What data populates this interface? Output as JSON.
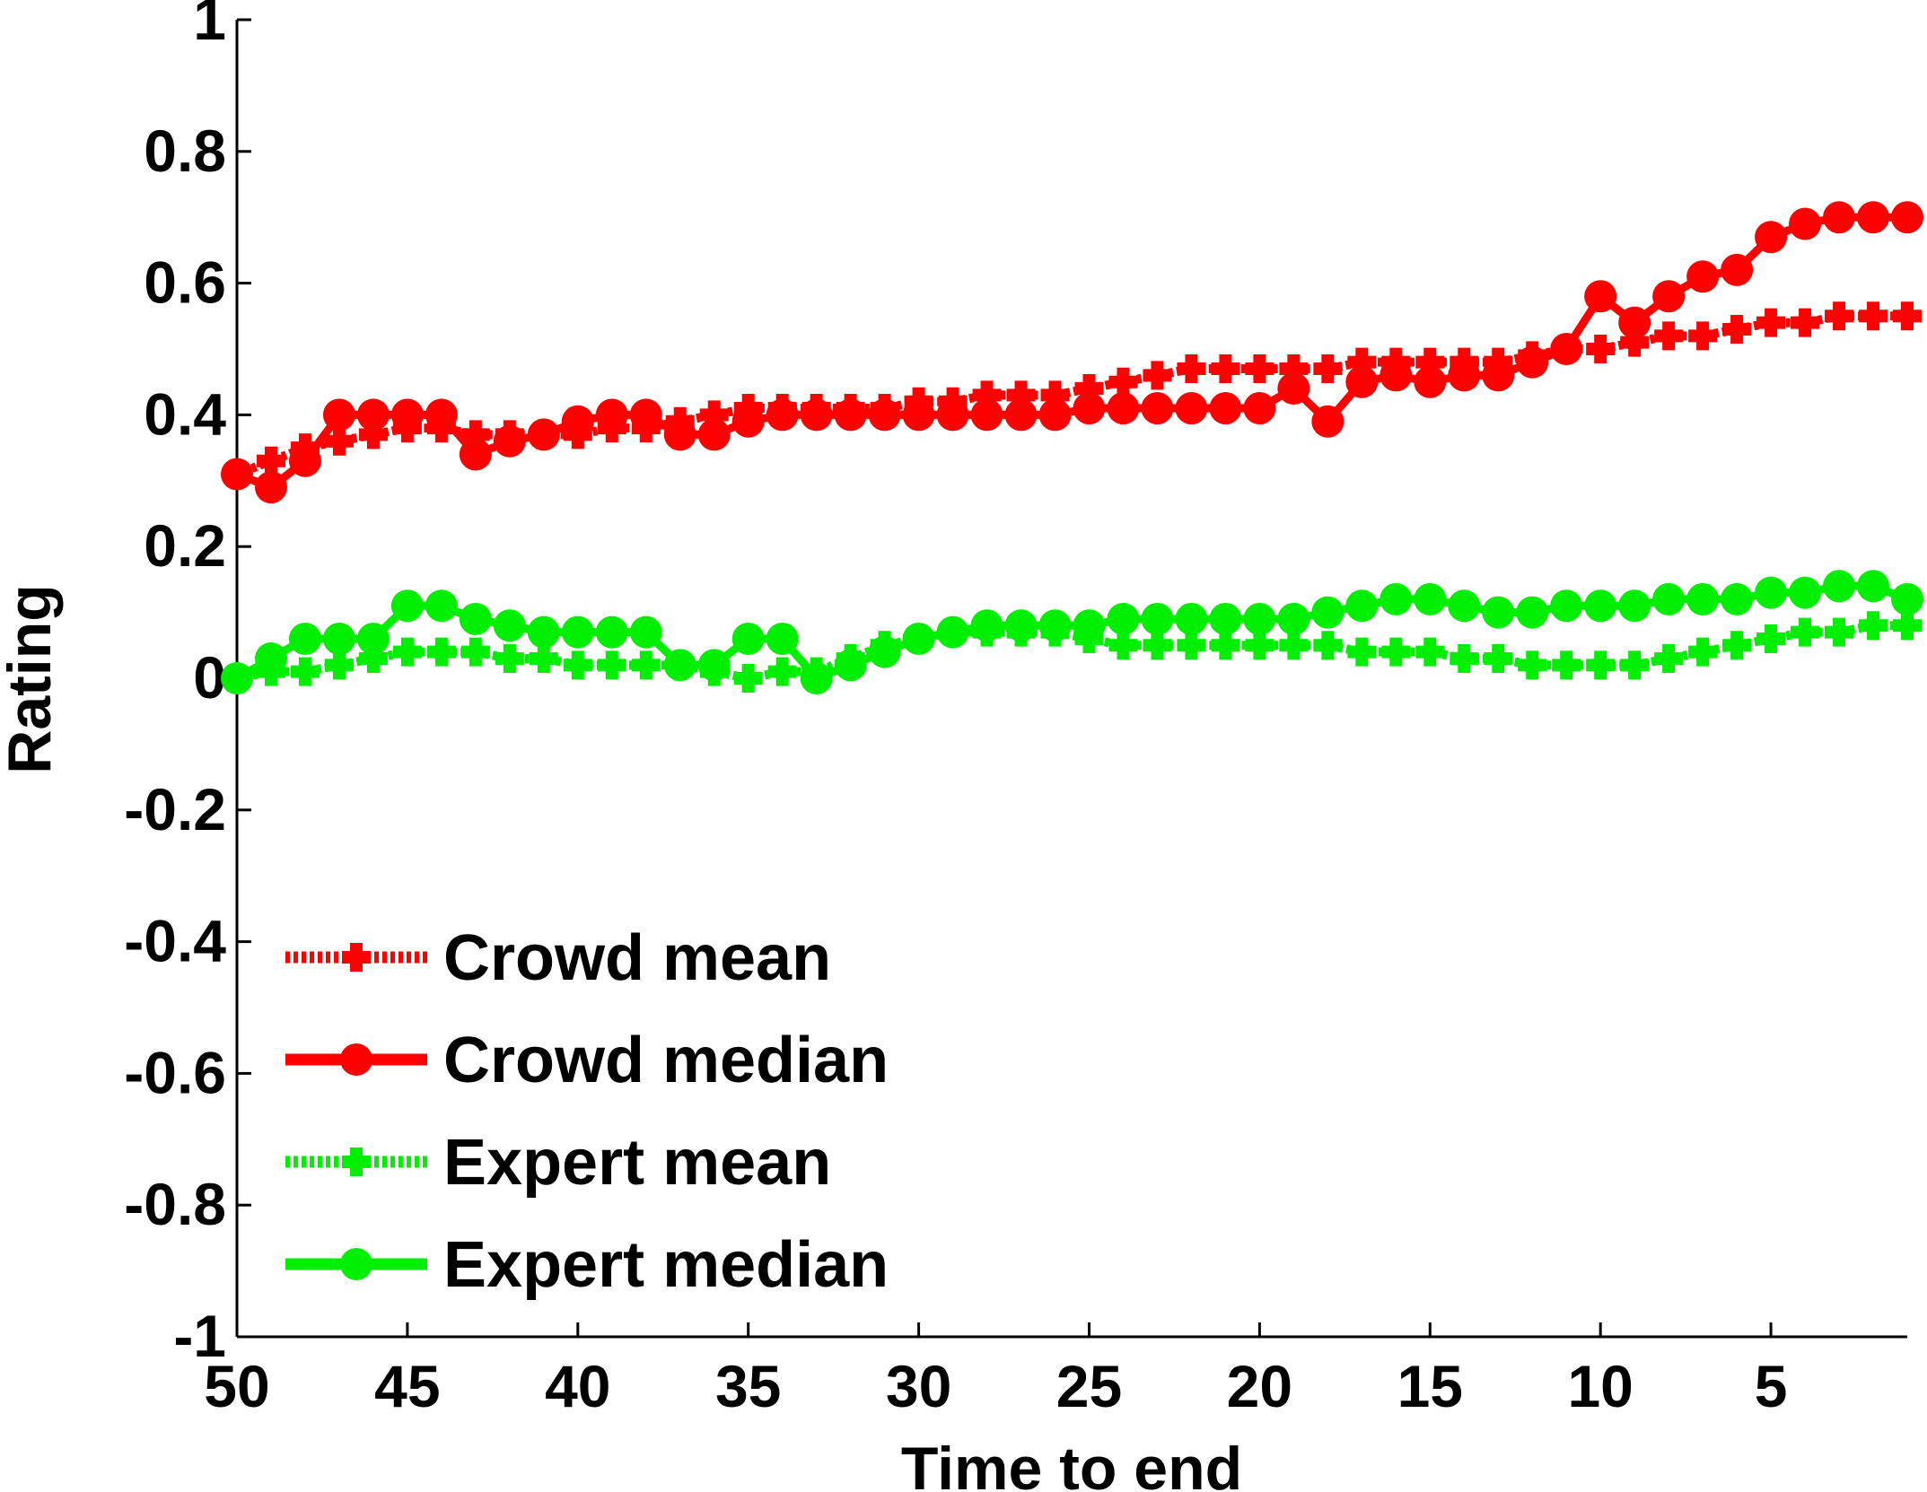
{
  "chart_data": {
    "type": "line",
    "title": "",
    "xlabel": "Time to end",
    "ylabel": "Rating",
    "xlim": [
      50,
      1
    ],
    "ylim": [
      -1,
      1
    ],
    "xticks": [
      50,
      45,
      40,
      35,
      30,
      25,
      20,
      15,
      10,
      5
    ],
    "xtick_labels": [
      "50",
      "45",
      "40",
      "35",
      "30",
      "25",
      "20",
      "15",
      "10",
      "5"
    ],
    "yticks": [
      1,
      0.8,
      0.6,
      0.4,
      0.2,
      0,
      -0.2,
      -0.4,
      -0.6,
      -0.8,
      -1
    ],
    "ytick_labels": [
      "1",
      "0.8",
      "0.6",
      "0.4",
      "0.2",
      "0",
      "-0.2",
      "-0.4",
      "-0.6",
      "-0.8",
      "-1"
    ],
    "legend_position": "bottom-left",
    "x": [
      50,
      49,
      48,
      47,
      46,
      45,
      44,
      43,
      42,
      41,
      40,
      39,
      38,
      37,
      36,
      35,
      34,
      33,
      32,
      31,
      30,
      29,
      28,
      27,
      26,
      25,
      24,
      23,
      22,
      21,
      20,
      19,
      18,
      17,
      16,
      15,
      14,
      13,
      12,
      11,
      10,
      9,
      8,
      7,
      6,
      5,
      4,
      3,
      2,
      1
    ],
    "series": [
      {
        "name": "Crowd mean",
        "color": "#ff0000",
        "line_style": "dotted",
        "marker": "plus",
        "values": [
          0.31,
          0.33,
          0.35,
          0.36,
          0.37,
          0.38,
          0.38,
          0.37,
          0.37,
          0.37,
          0.37,
          0.38,
          0.38,
          0.39,
          0.4,
          0.41,
          0.41,
          0.41,
          0.41,
          0.41,
          0.42,
          0.42,
          0.43,
          0.43,
          0.43,
          0.44,
          0.45,
          0.46,
          0.47,
          0.47,
          0.47,
          0.47,
          0.47,
          0.48,
          0.48,
          0.48,
          0.48,
          0.48,
          0.49,
          0.5,
          0.5,
          0.51,
          0.52,
          0.52,
          0.53,
          0.54,
          0.54,
          0.55,
          0.55,
          0.55
        ]
      },
      {
        "name": "Crowd median",
        "color": "#ff0000",
        "line_style": "solid",
        "marker": "circle",
        "values": [
          0.31,
          0.29,
          0.33,
          0.4,
          0.4,
          0.4,
          0.4,
          0.34,
          0.36,
          0.37,
          0.39,
          0.4,
          0.4,
          0.37,
          0.37,
          0.39,
          0.4,
          0.4,
          0.4,
          0.4,
          0.4,
          0.4,
          0.4,
          0.4,
          0.4,
          0.41,
          0.41,
          0.41,
          0.41,
          0.41,
          0.41,
          0.44,
          0.39,
          0.45,
          0.46,
          0.45,
          0.46,
          0.46,
          0.48,
          0.5,
          0.58,
          0.54,
          0.58,
          0.61,
          0.62,
          0.67,
          0.69,
          0.7,
          0.7,
          0.7
        ]
      },
      {
        "name": "Expert mean",
        "color": "#00ee00",
        "line_style": "dotted",
        "marker": "plus",
        "values": [
          0.0,
          0.01,
          0.01,
          0.02,
          0.03,
          0.04,
          0.04,
          0.04,
          0.03,
          0.03,
          0.02,
          0.02,
          0.02,
          0.02,
          0.01,
          0.0,
          0.01,
          0.01,
          0.03,
          0.05,
          0.06,
          0.07,
          0.07,
          0.07,
          0.07,
          0.06,
          0.05,
          0.05,
          0.05,
          0.05,
          0.05,
          0.05,
          0.05,
          0.04,
          0.04,
          0.04,
          0.03,
          0.03,
          0.02,
          0.02,
          0.02,
          0.02,
          0.03,
          0.04,
          0.05,
          0.06,
          0.07,
          0.07,
          0.08,
          0.08
        ]
      },
      {
        "name": "Expert median",
        "color": "#00ee00",
        "line_style": "solid",
        "marker": "circle",
        "values": [
          0.0,
          0.03,
          0.06,
          0.06,
          0.06,
          0.11,
          0.11,
          0.09,
          0.08,
          0.07,
          0.07,
          0.07,
          0.07,
          0.02,
          0.02,
          0.06,
          0.06,
          0.0,
          0.02,
          0.04,
          0.06,
          0.07,
          0.08,
          0.08,
          0.08,
          0.08,
          0.09,
          0.09,
          0.09,
          0.09,
          0.09,
          0.09,
          0.1,
          0.11,
          0.12,
          0.12,
          0.11,
          0.1,
          0.1,
          0.11,
          0.11,
          0.11,
          0.12,
          0.12,
          0.12,
          0.13,
          0.13,
          0.14,
          0.14,
          0.12
        ]
      }
    ]
  }
}
